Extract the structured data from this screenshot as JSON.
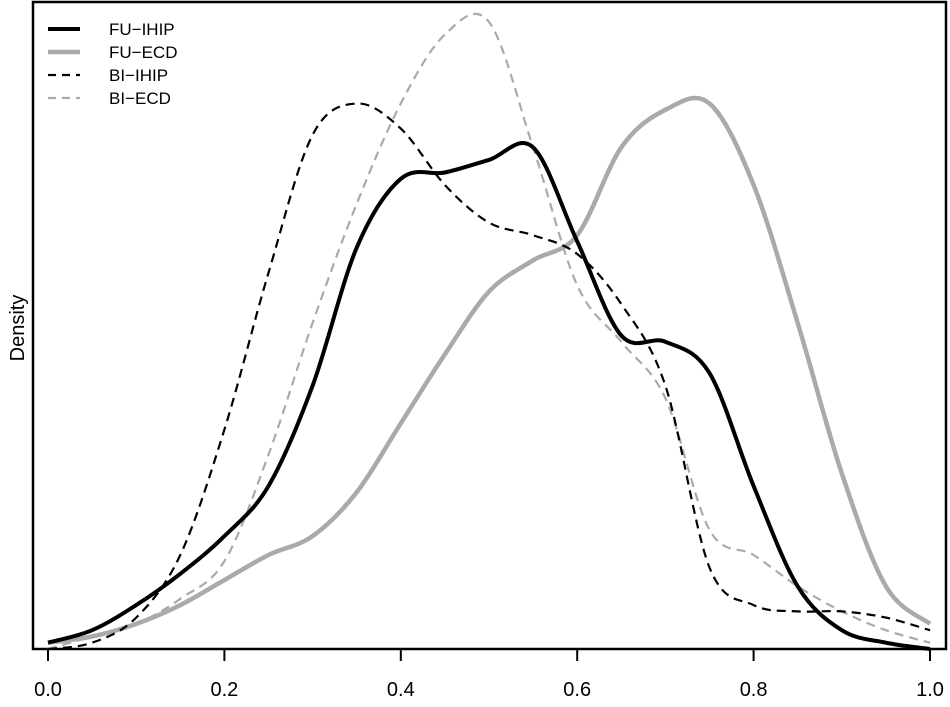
{
  "chart_data": {
    "type": "line",
    "title": "",
    "xlabel": "",
    "ylabel": "Density",
    "xlim": [
      0.0,
      1.0
    ],
    "ylim": [
      0.0,
      1.0
    ],
    "y_scale_note": "",
    "x_ticks": [
      "0.0",
      "0.2",
      "0.4",
      "0.6",
      "0.8",
      "1.0"
    ],
    "x_tick_values": [
      0.0,
      0.2,
      0.4,
      0.6,
      0.8,
      1.0
    ],
    "grid": false,
    "legend": {
      "position": "top-left"
    },
    "series": [
      {
        "name": "FU−IHIP",
        "color": "#000000",
        "style": "solid",
        "x": [
          0.0,
          0.05,
          0.1,
          0.15,
          0.2,
          0.25,
          0.3,
          0.35,
          0.4,
          0.45,
          0.5,
          0.55,
          0.6,
          0.65,
          0.7,
          0.75,
          0.8,
          0.85,
          0.9,
          0.95,
          1.0
        ],
        "y": [
          0.01,
          0.03,
          0.07,
          0.12,
          0.18,
          0.26,
          0.42,
          0.64,
          0.75,
          0.76,
          0.78,
          0.8,
          0.65,
          0.5,
          0.49,
          0.44,
          0.26,
          0.1,
          0.03,
          0.01,
          0.0
        ]
      },
      {
        "name": "FU−ECD",
        "color": "#aaaaaa",
        "style": "solid",
        "x": [
          0.0,
          0.05,
          0.1,
          0.15,
          0.2,
          0.25,
          0.3,
          0.35,
          0.4,
          0.45,
          0.5,
          0.55,
          0.6,
          0.65,
          0.7,
          0.75,
          0.8,
          0.85,
          0.9,
          0.95,
          1.0
        ],
        "y": [
          0.01,
          0.02,
          0.04,
          0.07,
          0.11,
          0.15,
          0.18,
          0.25,
          0.36,
          0.47,
          0.57,
          0.62,
          0.66,
          0.8,
          0.86,
          0.87,
          0.74,
          0.52,
          0.28,
          0.1,
          0.04
        ]
      },
      {
        "name": "BI−IHIP",
        "color": "#000000",
        "style": "dashed",
        "x": [
          0.0,
          0.05,
          0.1,
          0.15,
          0.2,
          0.25,
          0.3,
          0.35,
          0.4,
          0.45,
          0.5,
          0.55,
          0.6,
          0.65,
          0.7,
          0.75,
          0.8,
          0.85,
          0.9,
          0.95,
          1.0
        ],
        "y": [
          0.0,
          0.01,
          0.05,
          0.15,
          0.35,
          0.6,
          0.82,
          0.87,
          0.83,
          0.74,
          0.68,
          0.66,
          0.63,
          0.55,
          0.42,
          0.13,
          0.07,
          0.06,
          0.06,
          0.05,
          0.03
        ]
      },
      {
        "name": "BI−ECD",
        "color": "#aaaaaa",
        "style": "dashed",
        "x": [
          0.0,
          0.05,
          0.1,
          0.15,
          0.2,
          0.25,
          0.3,
          0.35,
          0.4,
          0.45,
          0.5,
          0.55,
          0.6,
          0.65,
          0.7,
          0.75,
          0.8,
          0.85,
          0.9,
          0.95,
          1.0
        ],
        "y": [
          0.0,
          0.02,
          0.04,
          0.08,
          0.14,
          0.31,
          0.52,
          0.71,
          0.87,
          0.98,
          1.0,
          0.8,
          0.58,
          0.49,
          0.4,
          0.19,
          0.15,
          0.1,
          0.06,
          0.03,
          0.01
        ]
      }
    ]
  }
}
